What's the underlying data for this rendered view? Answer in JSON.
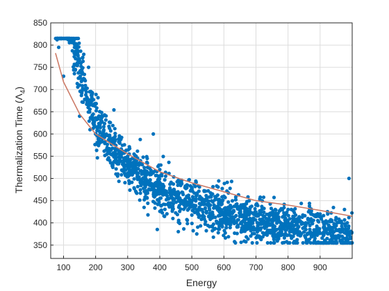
{
  "colors": {
    "points": "#0072BD",
    "fit_line": "#CC7A66",
    "grid": "#dcdcdc",
    "axes": "#262626",
    "background": "#ffffff"
  },
  "chart_data": {
    "type": "scatter",
    "title": "",
    "xlabel": "Energy",
    "ylabel_main": "Thermalization Time (Λ",
    "ylabel_sub": "4",
    "ylabel_close": ")",
    "xlim": [
      60,
      1000
    ],
    "ylim": [
      320,
      850
    ],
    "xticks": [
      100,
      200,
      300,
      400,
      500,
      600,
      700,
      800,
      900
    ],
    "yticks": [
      350,
      400,
      450,
      500,
      550,
      600,
      650,
      700,
      750,
      800,
      850
    ],
    "grid": true,
    "legend": "none",
    "series": [
      {
        "kind": "scatter",
        "n_points": 1800,
        "x_range": [
          75,
          1000
        ],
        "trend": "y ≈ 37880 · x^(-0.885) + 290",
        "sample_points": [
          {
            "x": 80,
            "y": 812
          },
          {
            "x": 85,
            "y": 795
          },
          {
            "x": 100,
            "y": 730
          },
          {
            "x": 150,
            "y": 640
          },
          {
            "x": 200,
            "y": 600
          },
          {
            "x": 300,
            "y": 550
          },
          {
            "x": 380,
            "y": 600
          },
          {
            "x": 400,
            "y": 520
          },
          {
            "x": 500,
            "y": 480
          },
          {
            "x": 600,
            "y": 460
          },
          {
            "x": 700,
            "y": 440
          },
          {
            "x": 800,
            "y": 430
          },
          {
            "x": 900,
            "y": 420
          },
          {
            "x": 950,
            "y": 360
          },
          {
            "x": 990,
            "y": 500
          }
        ]
      },
      {
        "kind": "line",
        "x": [
          75,
          100,
          150,
          200,
          300,
          400,
          500,
          600,
          700,
          800,
          900,
          1000
        ],
        "values": [
          782,
          717,
          645,
          600,
          555,
          515,
          490,
          470,
          450,
          440,
          428,
          415
        ]
      }
    ]
  }
}
